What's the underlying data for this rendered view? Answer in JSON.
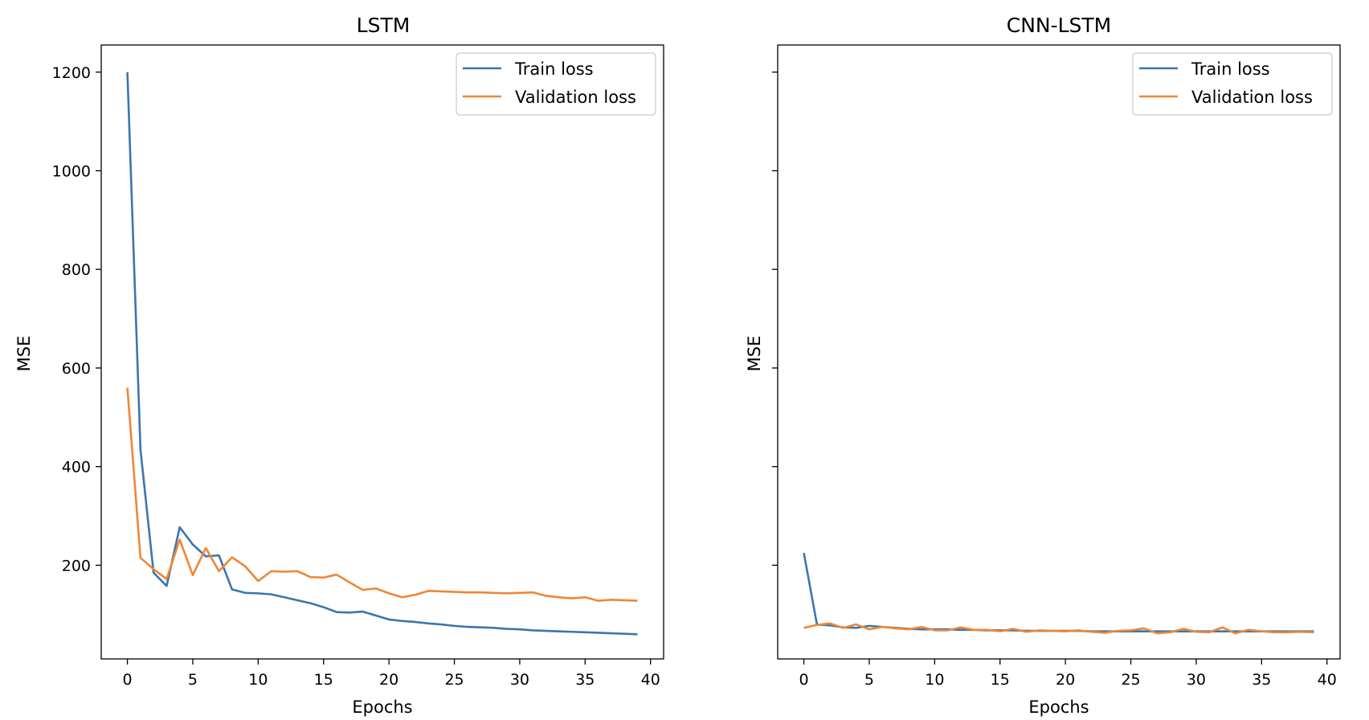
{
  "colors": {
    "train": "#3b75af",
    "validation": "#ef8636"
  },
  "chart_data": [
    {
      "type": "line",
      "title": "LSTM",
      "xlabel": "Epochs",
      "ylabel": "MSE",
      "xlim": [
        -2,
        41
      ],
      "ylim": [
        10,
        1255
      ],
      "xticks": [
        0,
        5,
        10,
        15,
        20,
        25,
        30,
        35,
        40
      ],
      "yticks": [
        200,
        400,
        600,
        800,
        1000,
        1200
      ],
      "ytick_labels_visible": true,
      "grid": false,
      "legend": "top-right",
      "x": [
        0,
        1,
        2,
        3,
        4,
        5,
        6,
        7,
        8,
        9,
        10,
        11,
        12,
        13,
        14,
        15,
        16,
        17,
        18,
        19,
        20,
        21,
        22,
        23,
        24,
        25,
        26,
        27,
        28,
        29,
        30,
        31,
        32,
        33,
        34,
        35,
        36,
        37,
        38,
        39
      ],
      "series": [
        {
          "name": "Train loss",
          "values": [
            1200,
            435,
            185,
            158,
            277,
            242,
            218,
            220,
            151,
            144,
            143,
            141,
            135,
            129,
            123,
            115,
            105,
            104,
            106,
            98,
            90,
            87,
            85,
            82,
            80,
            77,
            75,
            74,
            73,
            71,
            70,
            68,
            67,
            66,
            65,
            64,
            63,
            62,
            61,
            60
          ]
        },
        {
          "name": "Validation loss",
          "values": [
            560,
            215,
            192,
            172,
            252,
            180,
            235,
            188,
            216,
            198,
            168,
            188,
            187,
            188,
            176,
            175,
            181,
            165,
            150,
            153,
            143,
            135,
            140,
            148,
            147,
            146,
            145,
            145,
            144,
            143,
            144,
            145,
            138,
            135,
            133,
            135,
            128,
            130,
            129,
            128
          ]
        }
      ]
    },
    {
      "type": "line",
      "title": "CNN-LSTM",
      "xlabel": "Epochs",
      "ylabel": "MSE",
      "xlim": [
        -2,
        41
      ],
      "ylim": [
        10,
        1255
      ],
      "xticks": [
        0,
        5,
        10,
        15,
        20,
        25,
        30,
        35,
        40
      ],
      "yticks": [
        200,
        400,
        600,
        800,
        1000,
        1200
      ],
      "ytick_labels_visible": false,
      "grid": false,
      "legend": "top-right",
      "x": [
        0,
        1,
        2,
        3,
        4,
        5,
        6,
        7,
        8,
        9,
        10,
        11,
        12,
        13,
        14,
        15,
        16,
        17,
        18,
        19,
        20,
        21,
        22,
        23,
        24,
        25,
        26,
        27,
        28,
        29,
        30,
        31,
        32,
        33,
        34,
        35,
        36,
        37,
        38,
        39
      ],
      "series": [
        {
          "name": "Train loss",
          "values": [
            225,
            80,
            78,
            74,
            73,
            77,
            75,
            73,
            71,
            70,
            70,
            70,
            69,
            69,
            68,
            68,
            68,
            67,
            67,
            67,
            67,
            67,
            66,
            66,
            66,
            66,
            66,
            66,
            66,
            66,
            66,
            66,
            66,
            66,
            66,
            66,
            66,
            66,
            66,
            66
          ]
        },
        {
          "name": "Validation loss",
          "values": [
            73,
            79,
            82,
            73,
            80,
            70,
            75,
            72,
            70,
            75,
            68,
            68,
            74,
            69,
            69,
            66,
            71,
            65,
            68,
            67,
            66,
            68,
            65,
            63,
            67,
            68,
            72,
            62,
            64,
            71,
            65,
            64,
            74,
            62,
            69,
            66,
            64,
            64,
            65,
            64
          ]
        }
      ]
    }
  ]
}
